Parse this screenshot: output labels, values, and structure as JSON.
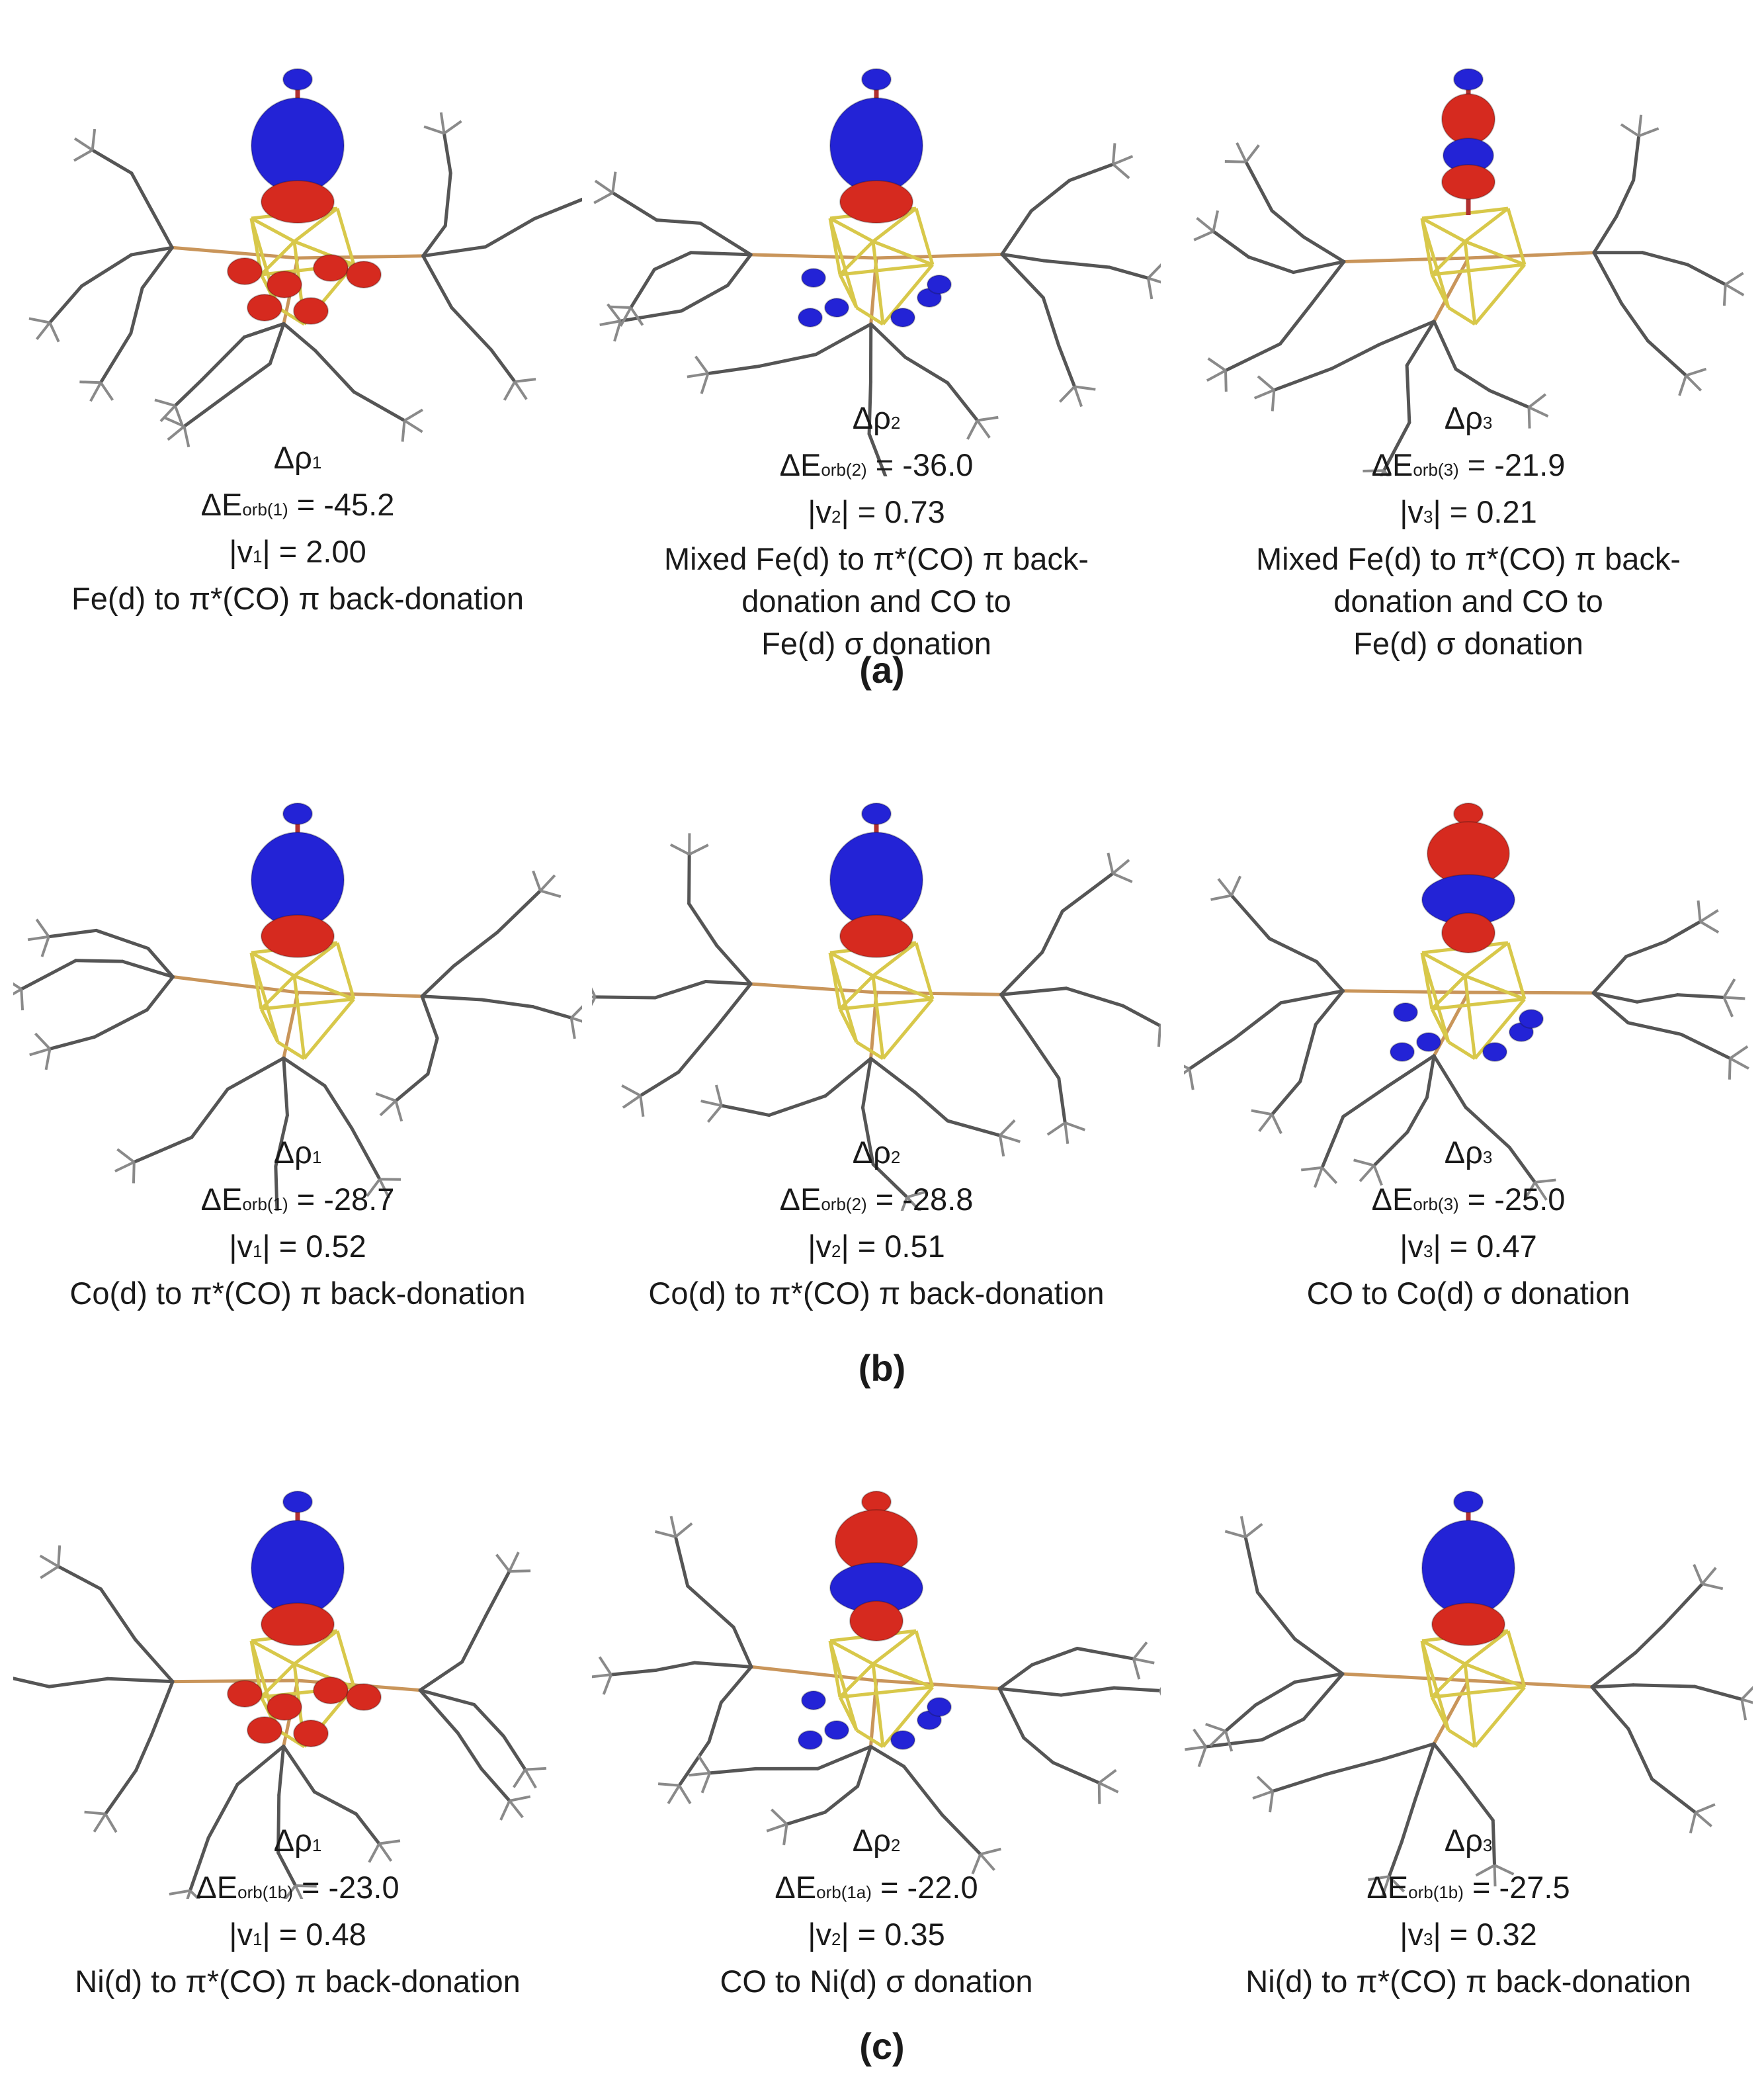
{
  "figure": {
    "labels": [
      "(a)",
      "(b)",
      "(c)"
    ],
    "rows": [
      {
        "label": "(a)",
        "panels": [
          {
            "delta": "Δρ",
            "index": "1",
            "eorb_pre": "ΔE",
            "eorb_sub": "orb(1)",
            "eorb_val": " = -45.2",
            "v_pre": "|v",
            "v_sub": "1",
            "v_val": "| = 2.00",
            "desc": [
              "Fe(d) to π*(CO) π back-donation"
            ]
          },
          {
            "delta": "Δρ",
            "index": "2",
            "eorb_pre": "ΔE",
            "eorb_sub": "orb(2)",
            "eorb_val": " = -36.0",
            "v_pre": "|v",
            "v_sub": "2",
            "v_val": "| = 0.73",
            "desc": [
              "Mixed Fe(d) to π*(CO) π back-",
              "donation and CO to",
              "Fe(d) σ donation"
            ]
          },
          {
            "delta": "Δρ",
            "index": "3",
            "eorb_pre": "ΔE",
            "eorb_sub": "orb(3)",
            "eorb_val": " = -21.9",
            "v_pre": "|v",
            "v_sub": "3",
            "v_val": "| = 0.21",
            "desc": [
              "Mixed Fe(d) to π*(CO) π back-",
              "donation and CO to",
              "Fe(d) σ donation"
            ]
          }
        ]
      },
      {
        "label": "(b)",
        "panels": [
          {
            "delta": "Δρ",
            "index": "1",
            "eorb_pre": "ΔE",
            "eorb_sub": "orb(1)",
            "eorb_val": " = -28.7",
            "v_pre": "|v",
            "v_sub": "1",
            "v_val": "| = 0.52",
            "desc": [
              "Co(d) to π*(CO) π back-donation"
            ]
          },
          {
            "delta": "Δρ",
            "index": "2",
            "eorb_pre": "ΔE",
            "eorb_sub": "orb(2)",
            "eorb_val": " = -28.8",
            "v_pre": "|v",
            "v_sub": "2",
            "v_val": "| = 0.51",
            "desc": [
              "Co(d) to π*(CO) π back-donation"
            ]
          },
          {
            "delta": "Δρ",
            "index": "3",
            "eorb_pre": "ΔE",
            "eorb_sub": "orb(3)",
            "eorb_val": " = -25.0",
            "v_pre": "|v",
            "v_sub": "3",
            "v_val": "| = 0.47",
            "desc": [
              "CO to Co(d) σ donation"
            ]
          }
        ]
      },
      {
        "label": "(c)",
        "panels": [
          {
            "delta": "Δρ",
            "index": "1",
            "eorb_pre": "ΔE",
            "eorb_sub": "orb(1b)",
            "eorb_val": " = -23.0",
            "v_pre": "|v",
            "v_sub": "1",
            "v_val": "| = 0.48",
            "desc": [
              "Ni(d) to π*(CO) π back-donation"
            ]
          },
          {
            "delta": "Δρ",
            "index": "2",
            "eorb_pre": "ΔE",
            "eorb_sub": "orb(1a)",
            "eorb_val": " = -22.0",
            "v_pre": "|v",
            "v_sub": "2",
            "v_val": "| = 0.35",
            "desc": [
              "CO to Ni(d) σ donation"
            ]
          },
          {
            "delta": "Δρ",
            "index": "3",
            "eorb_pre": "ΔE",
            "eorb_sub": "orb(1b)",
            "eorb_val": " = -27.5",
            "v_pre": "|v",
            "v_sub": "3",
            "v_val": "| = 0.32",
            "desc": [
              "Ni(d) to π*(CO) π back-donation"
            ]
          }
        ]
      }
    ],
    "colors": {
      "positive_lobe": "#2323d6",
      "negative_lobe": "#d62a1f",
      "cluster_bond": "#d8c84a",
      "ligand_bond": "#555555",
      "phosphorus_bond": "#c9955a"
    }
  }
}
